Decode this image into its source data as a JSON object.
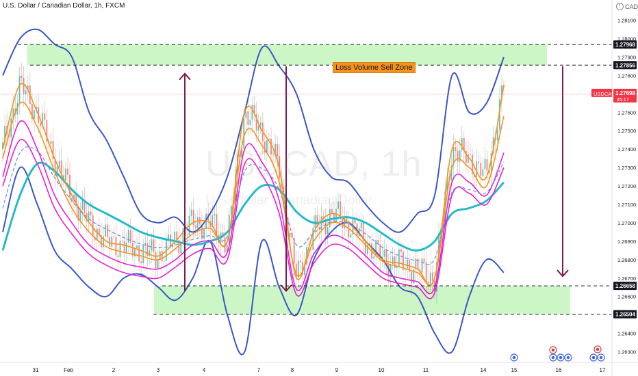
{
  "header": {
    "title": "U.S. Dollar / Canadian Dollar, 1h, FXCM",
    "currency": "CAD"
  },
  "annotations": {
    "zone_label": "Loss Volume Sell Zone"
  },
  "watermark": {
    "main": "USDCAD, 1h",
    "sub": "U.S. Dollar / Canadian Dollar"
  },
  "colors": {
    "zone_fill": "#c8f5c0",
    "arrow": "#7b1d4f",
    "bollinger": "#3a56c4",
    "ema_orange": "#f7931a",
    "ema_magenta": "#e81fd2",
    "ma_cyan": "#22bcc8",
    "price_tag_red": "#f23645"
  },
  "chart_data": {
    "type": "line",
    "title": "",
    "y_ticks": [
      "1.28100",
      "1.28000",
      "1.27900",
      "1.27800",
      "1.27700",
      "1.27600",
      "1.27500",
      "1.27400",
      "1.27300",
      "1.27200",
      "1.27100",
      "1.27000",
      "1.26900",
      "1.26800",
      "1.26700",
      "1.26600",
      "1.26500",
      "1.26400",
      "1.26300"
    ],
    "x_ticks": [
      "31",
      "Feb",
      "2",
      "3",
      "4",
      "7",
      "8",
      "9",
      "10",
      "11",
      "14",
      "15",
      "16",
      "17"
    ],
    "ylim": [
      1.2625,
      1.2818
    ],
    "levels": [
      {
        "label": "1.27968",
        "value": 1.27968,
        "style": "dashed-black"
      },
      {
        "label": "1.27856",
        "value": 1.27856,
        "style": "dashed-black"
      },
      {
        "label": "1.26658",
        "value": 1.26658,
        "style": "dashed-black"
      },
      {
        "label": "1.26504",
        "value": 1.26504,
        "style": "dashed-black"
      }
    ],
    "current_price": {
      "symbol": "USDCAD",
      "value": "1.27698",
      "countdown": "45:17"
    },
    "zones": [
      {
        "x_start": "31",
        "x_end": "15",
        "y_low": 1.27856,
        "y_high": 1.27968
      },
      {
        "x_start": "3",
        "x_end": "16",
        "y_low": 1.26504,
        "y_high": 1.26658
      }
    ],
    "arrows": [
      {
        "direction": "up",
        "at_x": "3",
        "from": 1.2663,
        "to": 1.2781
      },
      {
        "direction": "down",
        "at_x": "7",
        "from": 1.2785,
        "to": 1.2663
      },
      {
        "direction": "down",
        "at_x": "15",
        "from": 1.2785,
        "to": 1.2671
      }
    ],
    "series": [
      {
        "key": "bb_upper",
        "values": [
          1.278,
          1.28,
          1.2805,
          1.2797,
          1.279,
          1.276,
          1.2745,
          1.2725,
          1.2705,
          1.27,
          1.2703,
          1.2695,
          1.2705,
          1.2725,
          1.276,
          1.2795,
          1.2785,
          1.277,
          1.274,
          1.2725,
          1.2722,
          1.271,
          1.27,
          1.2695,
          1.2705,
          1.2715,
          1.278,
          1.276,
          1.2765,
          1.279
        ]
      },
      {
        "key": "bb_lower",
        "values": [
          1.2695,
          1.273,
          1.271,
          1.2685,
          1.2675,
          1.2665,
          1.266,
          1.267,
          1.2672,
          1.2665,
          1.2658,
          1.267,
          1.269,
          1.265,
          1.263,
          1.269,
          1.2665,
          1.265,
          1.268,
          1.2695,
          1.27,
          1.269,
          1.268,
          1.2665,
          1.266,
          1.264,
          1.263,
          1.266,
          1.268,
          1.2673
        ]
      },
      {
        "key": "ma_slow",
        "values": [
          1.2685,
          1.2715,
          1.2732,
          1.2728,
          1.2718,
          1.271,
          1.2705,
          1.27,
          1.2695,
          1.2692,
          1.269,
          1.2688,
          1.269,
          1.2695,
          1.271,
          1.272,
          1.2718,
          1.2706,
          1.27,
          1.2702,
          1.2703,
          1.27,
          1.2694,
          1.2688,
          1.2685,
          1.269,
          1.2705,
          1.2708,
          1.2712,
          1.2722
        ]
      },
      {
        "key": "ema_fast",
        "values": [
          1.274,
          1.2775,
          1.276,
          1.2735,
          1.2715,
          1.27,
          1.269,
          1.2688,
          1.2685,
          1.2682,
          1.269,
          1.27,
          1.27,
          1.269,
          1.276,
          1.275,
          1.273,
          1.267,
          1.2695,
          1.2705,
          1.27,
          1.269,
          1.268,
          1.2678,
          1.2675,
          1.267,
          1.274,
          1.2735,
          1.2725,
          1.2775
        ]
      },
      {
        "key": "ema_mid",
        "values": [
          1.2735,
          1.2765,
          1.2752,
          1.2728,
          1.2708,
          1.2695,
          1.2687,
          1.2684,
          1.2682,
          1.268,
          1.2686,
          1.2694,
          1.2697,
          1.269,
          1.2748,
          1.2742,
          1.2722,
          1.2672,
          1.269,
          1.27,
          1.2697,
          1.2688,
          1.2679,
          1.2676,
          1.2673,
          1.267,
          1.273,
          1.273,
          1.272,
          1.2758
        ]
      },
      {
        "key": "ema_magenta",
        "values": [
          1.2725,
          1.2755,
          1.274,
          1.2715,
          1.27,
          1.2688,
          1.2682,
          1.2678,
          1.2676,
          1.2675,
          1.268,
          1.2688,
          1.269,
          1.2684,
          1.274,
          1.2733,
          1.2712,
          1.2664,
          1.2683,
          1.2693,
          1.269,
          1.2682,
          1.2673,
          1.267,
          1.2668,
          1.2665,
          1.2722,
          1.2722,
          1.2715,
          1.2738
        ]
      },
      {
        "key": "ema_magenta2",
        "values": [
          1.272,
          1.2745,
          1.2732,
          1.2708,
          1.2694,
          1.2683,
          1.2677,
          1.2673,
          1.2671,
          1.267,
          1.2676,
          1.2683,
          1.2686,
          1.268,
          1.2732,
          1.2726,
          1.2705,
          1.2661,
          1.2678,
          1.2688,
          1.2686,
          1.2678,
          1.267,
          1.2667,
          1.2665,
          1.2662,
          1.2715,
          1.2716,
          1.271,
          1.273
        ]
      }
    ]
  }
}
